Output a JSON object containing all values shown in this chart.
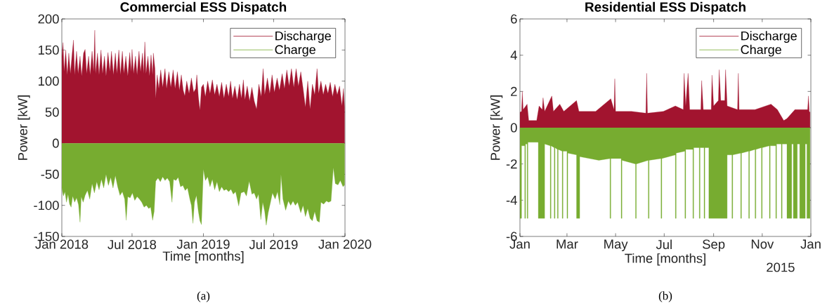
{
  "chart_data": [
    {
      "type": "area",
      "title": "Commercial ESS Dispatch",
      "xlabel": "Time [months]",
      "ylabel": "Power [kW]",
      "annotations": [
        "(a)"
      ],
      "xlim": [
        "2018-01-01",
        "2020-01-01"
      ],
      "xticks": [
        {
          "value": "2018-01-01",
          "label": "Jan 2018"
        },
        {
          "value": "2018-07-01",
          "label": "Jul 2018"
        },
        {
          "value": "2019-01-01",
          "label": "Jan 2019"
        },
        {
          "value": "2019-07-01",
          "label": "Jul 2019"
        },
        {
          "value": "2020-01-01",
          "label": "Jan 2020"
        }
      ],
      "ylim": [
        -150,
        200
      ],
      "yticks": [
        -150,
        -100,
        -50,
        0,
        50,
        100,
        150,
        200
      ],
      "legend": "top right",
      "series": [
        {
          "name": "Discharge",
          "color": "#a2142f",
          "x": [
            "2018-01-01",
            "2018-01-04",
            "2018-01-07",
            "2018-01-11",
            "2018-01-15",
            "2018-01-19",
            "2018-01-23",
            "2018-01-27",
            "2018-01-31",
            "2018-02-03",
            "2018-02-08",
            "2018-02-12",
            "2018-02-17",
            "2018-02-21",
            "2018-02-26",
            "2018-03-02",
            "2018-03-06",
            "2018-03-11",
            "2018-03-15",
            "2018-03-20",
            "2018-03-24",
            "2018-03-27",
            "2018-03-29",
            "2018-04-03",
            "2018-04-07",
            "2018-04-12",
            "2018-04-16",
            "2018-04-21",
            "2018-04-25",
            "2018-04-30",
            "2018-05-05",
            "2018-05-09",
            "2018-05-14",
            "2018-05-19",
            "2018-05-23",
            "2018-05-28",
            "2018-06-01",
            "2018-06-06",
            "2018-06-10",
            "2018-06-15",
            "2018-06-20",
            "2018-06-25",
            "2018-06-29",
            "2018-07-01",
            "2018-07-05",
            "2018-07-10",
            "2018-07-14",
            "2018-07-19",
            "2018-07-23",
            "2018-07-28",
            "2018-07-31",
            "2018-08-03",
            "2018-08-06",
            "2018-08-11",
            "2018-08-15",
            "2018-08-19",
            "2018-08-23",
            "2018-08-25",
            "2018-08-29",
            "2018-08-31",
            "2018-09-04",
            "2018-09-08",
            "2018-09-13",
            "2018-09-18",
            "2018-09-24",
            "2018-09-28",
            "2018-10-04",
            "2018-10-09",
            "2018-10-15",
            "2018-10-20",
            "2018-10-26",
            "2018-10-31",
            "2018-11-05",
            "2018-11-10",
            "2018-11-14",
            "2018-11-19",
            "2018-11-25",
            "2018-12-01",
            "2018-12-07",
            "2018-12-12",
            "2018-12-15",
            "2018-12-19",
            "2018-12-23",
            "2018-12-27",
            "2019-01-01",
            "2019-01-06",
            "2019-01-12",
            "2019-01-18",
            "2019-01-24",
            "2019-01-30",
            "2019-02-05",
            "2019-02-11",
            "2019-02-17",
            "2019-02-23",
            "2019-03-01",
            "2019-03-07",
            "2019-03-12",
            "2019-03-17",
            "2019-03-23",
            "2019-03-29",
            "2019-04-04",
            "2019-04-09",
            "2019-04-14",
            "2019-04-18",
            "2019-04-24",
            "2019-04-30",
            "2019-05-06",
            "2019-05-12",
            "2019-05-18",
            "2019-05-24",
            "2019-05-30",
            "2019-06-04",
            "2019-06-08",
            "2019-06-15",
            "2019-06-21",
            "2019-06-27",
            "2019-07-03",
            "2019-07-10",
            "2019-07-16",
            "2019-07-23",
            "2019-07-29",
            "2019-08-04",
            "2019-08-10",
            "2019-08-16",
            "2019-08-22",
            "2019-08-28",
            "2019-09-03",
            "2019-09-09",
            "2019-09-15",
            "2019-09-21",
            "2019-09-27",
            "2019-10-03",
            "2019-10-09",
            "2019-10-15",
            "2019-10-21",
            "2019-10-25",
            "2019-10-31",
            "2019-11-06",
            "2019-11-12",
            "2019-11-18",
            "2019-11-24",
            "2019-11-30",
            "2019-12-06",
            "2019-12-12",
            "2019-12-18",
            "2019-12-24",
            "2019-12-28",
            "2019-12-31"
          ],
          "values": [
            140,
            162,
            115,
            150,
            110,
            145,
            112,
            140,
            166,
            110,
            148,
            112,
            140,
            108,
            145,
            151,
            112,
            140,
            110,
            148,
            115,
            182,
            112,
            145,
            110,
            150,
            112,
            140,
            108,
            146,
            115,
            148,
            110,
            145,
            112,
            150,
            110,
            148,
            112,
            140,
            108,
            146,
            115,
            151,
            112,
            140,
            110,
            148,
            115,
            145,
            112,
            163,
            112,
            140,
            108,
            142,
            110,
            145,
            120,
            72,
            110,
            88,
            118,
            90,
            120,
            88,
            115,
            90,
            118,
            88,
            115,
            85,
            110,
            85,
            76,
            100,
            80,
            105,
            82,
            88,
            110,
            75,
            53,
            90,
            95,
            75,
            100,
            80,
            102,
            78,
            95,
            75,
            98,
            72,
            95,
            75,
            100,
            72,
            92,
            70,
            95,
            72,
            102,
            70,
            92,
            68,
            90,
            68,
            55,
            95,
            75,
            120,
            78,
            105,
            80,
            110,
            82,
            105,
            85,
            112,
            88,
            118,
            92,
            120,
            90,
            120,
            92,
            115,
            88,
            58,
            100,
            55,
            95,
            78,
            120,
            80,
            100,
            78,
            95,
            80,
            98,
            75,
            95,
            78,
            92,
            60,
            88,
            58
          ]
        },
        {
          "name": "Charge",
          "color": "#77ac30",
          "x": [
            "2018-01-01",
            "2018-01-05",
            "2018-01-09",
            "2018-01-13",
            "2018-01-17",
            "2018-01-21",
            "2018-01-25",
            "2018-01-29",
            "2018-02-03",
            "2018-02-08",
            "2018-02-13",
            "2018-02-17",
            "2018-02-20",
            "2018-02-25",
            "2018-03-02",
            "2018-03-08",
            "2018-03-14",
            "2018-03-20",
            "2018-03-26",
            "2018-04-01",
            "2018-04-07",
            "2018-04-13",
            "2018-04-19",
            "2018-04-25",
            "2018-05-01",
            "2018-05-07",
            "2018-05-13",
            "2018-05-19",
            "2018-05-25",
            "2018-05-31",
            "2018-06-06",
            "2018-06-12",
            "2018-06-16",
            "2018-06-20",
            "2018-06-26",
            "2018-07-02",
            "2018-07-08",
            "2018-07-14",
            "2018-07-20",
            "2018-07-26",
            "2018-08-01",
            "2018-08-07",
            "2018-08-13",
            "2018-08-18",
            "2018-08-23",
            "2018-08-27",
            "2018-08-31",
            "2018-09-06",
            "2018-09-12",
            "2018-09-18",
            "2018-09-24",
            "2018-09-30",
            "2018-10-06",
            "2018-10-12",
            "2018-10-16",
            "2018-10-22",
            "2018-10-28",
            "2018-11-03",
            "2018-11-09",
            "2018-11-15",
            "2018-11-21",
            "2018-11-27",
            "2018-12-01",
            "2018-12-05",
            "2018-12-09",
            "2018-12-14",
            "2018-12-19",
            "2018-12-23",
            "2018-12-27",
            "2019-01-01",
            "2019-01-06",
            "2019-01-12",
            "2019-01-18",
            "2019-01-24",
            "2019-01-30",
            "2019-02-05",
            "2019-02-11",
            "2019-02-17",
            "2019-02-23",
            "2019-03-01",
            "2019-03-07",
            "2019-03-13",
            "2019-03-19",
            "2019-03-25",
            "2019-04-02",
            "2019-04-08",
            "2019-04-16",
            "2019-04-22",
            "2019-04-29",
            "2019-05-06",
            "2019-05-12",
            "2019-05-18",
            "2019-05-23",
            "2019-05-29",
            "2019-06-03",
            "2019-06-08",
            "2019-06-12",
            "2019-06-17",
            "2019-06-23",
            "2019-06-28",
            "2019-07-05",
            "2019-07-11",
            "2019-07-17",
            "2019-07-20",
            "2019-07-25",
            "2019-08-01",
            "2019-08-08",
            "2019-08-14",
            "2019-08-20",
            "2019-08-26",
            "2019-09-01",
            "2019-09-09",
            "2019-09-15",
            "2019-09-21",
            "2019-09-27",
            "2019-10-03",
            "2019-10-09",
            "2019-10-15",
            "2019-10-21",
            "2019-10-27",
            "2019-10-31",
            "2019-11-07",
            "2019-11-14",
            "2019-11-20",
            "2019-11-26",
            "2019-12-02",
            "2019-12-07",
            "2019-12-14",
            "2019-12-20",
            "2019-12-27",
            "2019-12-31"
          ],
          "values": [
            -72,
            -85,
            -78,
            -95,
            -82,
            -98,
            -103,
            -85,
            -95,
            -88,
            -99,
            -127,
            -86,
            -95,
            -84,
            -76,
            -90,
            -65,
            -80,
            -62,
            -75,
            -58,
            -72,
            -50,
            -68,
            -55,
            -72,
            -52,
            -70,
            -84,
            -78,
            -90,
            -124,
            -86,
            -88,
            -80,
            -92,
            -86,
            -90,
            -95,
            -103,
            -100,
            -105,
            -103,
            -124,
            -110,
            -61,
            -56,
            -62,
            -54,
            -60,
            -56,
            -62,
            -95,
            -58,
            -60,
            -55,
            -70,
            -68,
            -76,
            -72,
            -90,
            -100,
            -129,
            -95,
            -84,
            -110,
            -125,
            -131,
            -42,
            -60,
            -54,
            -70,
            -58,
            -75,
            -62,
            -78,
            -70,
            -76,
            -74,
            -78,
            -74,
            -82,
            -78,
            -101,
            -80,
            -78,
            -85,
            -61,
            -82,
            -80,
            -90,
            -82,
            -123,
            -95,
            -110,
            -132,
            -112,
            -95,
            -80,
            -90,
            -78,
            -99,
            -50,
            -90,
            -108,
            -93,
            -100,
            -93,
            -100,
            -95,
            -112,
            -100,
            -118,
            -105,
            -121,
            -125,
            -110,
            -125,
            -127,
            -95,
            -98,
            -93,
            -95,
            -93,
            -39,
            -65,
            -67,
            -60,
            -70,
            -67
          ]
        }
      ]
    },
    {
      "type": "area",
      "title": "Residential ESS Dispatch",
      "xlabel": "Time [months]",
      "ylabel": "Power [kW]",
      "annotations": [
        "2015",
        "(b)"
      ],
      "xlim": [
        "2015-01-01",
        "2016-01-01"
      ],
      "xticks": [
        {
          "value": "2015-01-01",
          "label": "Jan"
        },
        {
          "value": "2015-03-01",
          "label": "Mar"
        },
        {
          "value": "2015-05-01",
          "label": "May"
        },
        {
          "value": "2015-07-01",
          "label": "Jul"
        },
        {
          "value": "2015-09-01",
          "label": "Sep"
        },
        {
          "value": "2015-11-01",
          "label": "Nov"
        },
        {
          "value": "2016-01-01",
          "label": "Jan"
        }
      ],
      "ylim": [
        -6,
        6
      ],
      "yticks": [
        -6,
        -4,
        -2,
        0,
        2,
        4,
        6
      ],
      "legend": "top right",
      "series": [
        {
          "name": "Discharge",
          "color": "#a2142f",
          "x": [
            "2015-01-01",
            "2015-01-03",
            "2015-01-04",
            "2015-01-05",
            "2015-01-10",
            "2015-01-12",
            "2015-01-22",
            "2015-01-25",
            "2015-01-29",
            "2015-01-30",
            "2015-02-01",
            "2015-02-10",
            "2015-02-12",
            "2015-02-20",
            "2015-02-25",
            "2015-03-13",
            "2015-03-16",
            "2015-04-06",
            "2015-04-25",
            "2015-04-29",
            "2015-04-30",
            "2015-05-01",
            "2015-05-21",
            "2015-06-08",
            "2015-06-09",
            "2015-06-10",
            "2015-06-30",
            "2015-07-15",
            "2015-07-25",
            "2015-07-26",
            "2015-07-28",
            "2015-07-31",
            "2015-08-02",
            "2015-08-16",
            "2015-08-17",
            "2015-08-19",
            "2015-08-29",
            "2015-08-30",
            "2015-09-01",
            "2015-09-07",
            "2015-09-08",
            "2015-09-10",
            "2015-09-15",
            "2015-09-16",
            "2015-09-18",
            "2015-10-01",
            "2015-10-02",
            "2015-10-03",
            "2015-10-23",
            "2015-11-12",
            "2015-11-20",
            "2015-11-28",
            "2015-12-02",
            "2015-12-12",
            "2015-12-28",
            "2015-12-29",
            "2015-12-30",
            "2015-12-31"
          ],
          "values": [
            0.85,
            0.9,
            2.0,
            1.0,
            1.3,
            0.4,
            0.4,
            1.2,
            1.0,
            1.65,
            0.9,
            1.75,
            0.9,
            1.3,
            0.9,
            1.5,
            0.9,
            0.9,
            1.6,
            1.0,
            2.7,
            0.9,
            0.9,
            0.8,
            3.0,
            0.8,
            0.9,
            1.2,
            1.0,
            3.0,
            1.2,
            3.0,
            1.0,
            1.0,
            2.6,
            1.0,
            1.0,
            2.9,
            1.2,
            1.5,
            3.2,
            1.5,
            1.5,
            3.2,
            1.2,
            1.0,
            3.0,
            1.0,
            1.0,
            1.3,
            1.0,
            0.4,
            0.5,
            1.0,
            1.0,
            1.75,
            0.9,
            0.85
          ]
        },
        {
          "name": "Charge",
          "color": "#77ac30",
          "x": [
            "2015-01-01",
            "2015-01-03",
            "2015-01-03",
            "2015-01-07",
            "2015-01-07",
            "2015-01-08",
            "2015-01-08",
            "2015-01-10",
            "2015-01-10",
            "2015-01-11",
            "2015-01-11",
            "2015-01-24",
            "2015-01-24",
            "2015-02-01",
            "2015-02-01",
            "2015-02-08",
            "2015-02-08",
            "2015-02-09",
            "2015-02-09",
            "2015-02-13",
            "2015-02-13",
            "2015-02-14",
            "2015-02-14",
            "2015-02-17",
            "2015-02-17",
            "2015-02-18",
            "2015-02-18",
            "2015-02-23",
            "2015-02-23",
            "2015-02-24",
            "2015-02-24",
            "2015-03-01",
            "2015-03-01",
            "2015-03-02",
            "2015-03-02",
            "2015-03-13",
            "2015-03-13",
            "2015-03-17",
            "2015-03-17",
            "2015-04-10",
            "2015-04-24",
            "2015-04-24",
            "2015-04-25",
            "2015-04-25",
            "2015-05-08",
            "2015-05-08",
            "2015-05-09",
            "2015-05-09",
            "2015-05-26",
            "2015-05-26",
            "2015-05-27",
            "2015-05-27",
            "2015-06-11",
            "2015-06-11",
            "2015-06-12",
            "2015-06-12",
            "2015-06-27",
            "2015-06-27",
            "2015-06-28",
            "2015-06-28",
            "2015-07-15",
            "2015-07-15",
            "2015-07-16",
            "2015-07-16",
            "2015-07-27",
            "2015-07-27",
            "2015-07-28",
            "2015-07-28",
            "2015-08-06",
            "2015-08-06",
            "2015-08-07",
            "2015-08-07",
            "2015-08-14",
            "2015-08-14",
            "2015-08-15",
            "2015-08-15",
            "2015-08-20",
            "2015-08-20",
            "2015-08-21",
            "2015-08-21",
            "2015-08-26",
            "2015-08-26",
            "2015-09-18",
            "2015-09-18",
            "2015-09-24",
            "2015-09-24",
            "2015-09-25",
            "2015-09-25",
            "2015-10-05",
            "2015-10-05",
            "2015-10-06",
            "2015-10-06",
            "2015-10-15",
            "2015-10-15",
            "2015-10-16",
            "2015-10-16",
            "2015-10-23",
            "2015-10-23",
            "2015-10-24",
            "2015-10-24",
            "2015-10-31",
            "2015-10-31",
            "2015-11-01",
            "2015-11-01",
            "2015-11-10",
            "2015-11-10",
            "2015-11-11",
            "2015-11-11",
            "2015-11-18",
            "2015-11-18",
            "2015-11-19",
            "2015-11-19",
            "2015-11-25",
            "2015-11-25",
            "2015-11-26",
            "2015-11-26",
            "2015-12-02",
            "2015-12-02",
            "2015-12-08",
            "2015-12-08",
            "2015-12-10",
            "2015-12-10",
            "2015-12-15",
            "2015-12-15",
            "2015-12-18",
            "2015-12-18",
            "2015-12-25",
            "2015-12-25",
            "2015-12-27",
            "2015-12-27",
            "2015-12-31"
          ],
          "values": [
            -5,
            -5,
            -1.0,
            -1.0,
            -5,
            -5,
            -0.9,
            -0.9,
            -5,
            -5,
            -0.8,
            -0.8,
            -5,
            -5,
            -0.9,
            -1.0,
            -5,
            -5,
            -1.0,
            -1.1,
            -5,
            -5,
            -1.1,
            -1.2,
            -5,
            -5,
            -1.2,
            -1.3,
            -5,
            -5,
            -1.3,
            -1.3,
            -5,
            -5,
            -1.4,
            -1.5,
            -5,
            -5,
            -1.6,
            -1.8,
            -1.7,
            -5,
            -5,
            -1.7,
            -1.7,
            -5,
            -5,
            -1.8,
            -2.0,
            -5,
            -5,
            -2.0,
            -1.8,
            -5,
            -5,
            -1.8,
            -1.7,
            -5,
            -5,
            -1.7,
            -1.5,
            -5,
            -5,
            -1.4,
            -1.3,
            -5,
            -5,
            -1.2,
            -1.2,
            -5,
            -5,
            -1.1,
            -1.1,
            -5,
            -5,
            -1.1,
            -1.1,
            -5,
            -5,
            -1.1,
            -1.1,
            -5,
            -5,
            -1.5,
            -1.5,
            -5,
            -5,
            -1.5,
            -1.4,
            -5,
            -5,
            -1.4,
            -1.3,
            -5,
            -5,
            -1.3,
            -1.2,
            -5,
            -5,
            -1.2,
            -1.1,
            -5,
            -5,
            -1.1,
            -1.0,
            -5,
            -5,
            -1.0,
            -1.0,
            -5,
            -5,
            -0.9,
            -0.9,
            -5,
            -5,
            -0.9,
            -0.9,
            -5,
            -5,
            -0.9,
            -0.9,
            -5,
            -5,
            -0.9,
            -0.9,
            -5,
            -5,
            -0.9,
            -0.9,
            -5,
            -5
          ]
        }
      ]
    }
  ]
}
